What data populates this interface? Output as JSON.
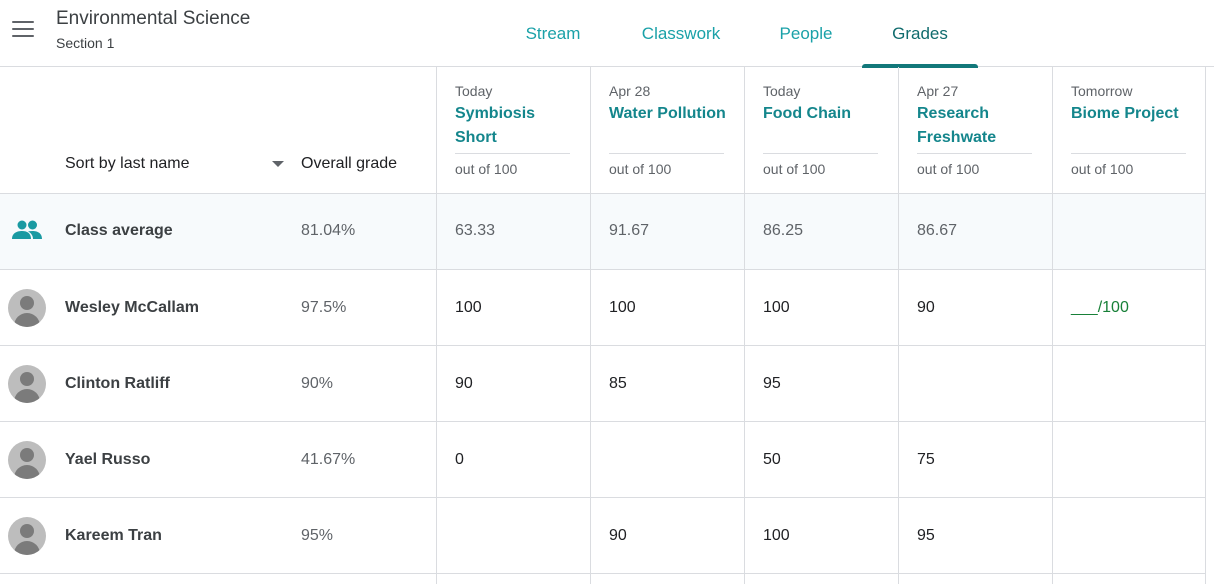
{
  "course": {
    "title": "Environmental Science",
    "section": "Section 1"
  },
  "tabs": [
    {
      "label": "Stream",
      "active": false
    },
    {
      "label": "Classwork",
      "active": false
    },
    {
      "label": "People",
      "active": false
    },
    {
      "label": "Grades",
      "active": true
    }
  ],
  "columns": {
    "sort_label": "Sort by last name",
    "overall_label": "Overall grade"
  },
  "assignments": [
    {
      "due": "Today",
      "title": "Symbiosis Short",
      "points": "out of 100"
    },
    {
      "due": "Apr 28",
      "title": "Water Pollution",
      "points": "out of 100"
    },
    {
      "due": "Today",
      "title": "Food Chain",
      "points": "out of 100"
    },
    {
      "due": "Apr 27",
      "title": "Research Freshwate",
      "points": "out of 100"
    },
    {
      "due": "Tomorrow",
      "title": "Biome Project",
      "points": "out of 100"
    }
  ],
  "class_average": {
    "label": "Class average",
    "overall": "81.04%",
    "grades": [
      "63.33",
      "91.67",
      "86.25",
      "86.67",
      ""
    ]
  },
  "students": [
    {
      "name": "Wesley McCallam",
      "overall": "97.5%",
      "grades": [
        "100",
        "100",
        "100",
        "90",
        "___/100"
      ]
    },
    {
      "name": "Clinton Ratliff",
      "overall": "90%",
      "grades": [
        "90",
        "85",
        "95",
        "",
        ""
      ]
    },
    {
      "name": "Yael Russo",
      "overall": "41.67%",
      "grades": [
        "0",
        "",
        "50",
        "75",
        ""
      ]
    },
    {
      "name": "Kareem Tran",
      "overall": "95%",
      "grades": [
        "",
        "90",
        "100",
        "95",
        ""
      ]
    }
  ],
  "colors": {
    "accent": "#1aa1a8",
    "tab_active": "#0f6b6d",
    "assignment_title": "#14868c",
    "missing_grade": "#188038",
    "average_row_bg": "#f7fafc"
  },
  "icons": {
    "menu": "menu-icon",
    "sort": "caret-down-icon",
    "class_average": "people-group-icon",
    "student": "default-avatar-icon"
  }
}
